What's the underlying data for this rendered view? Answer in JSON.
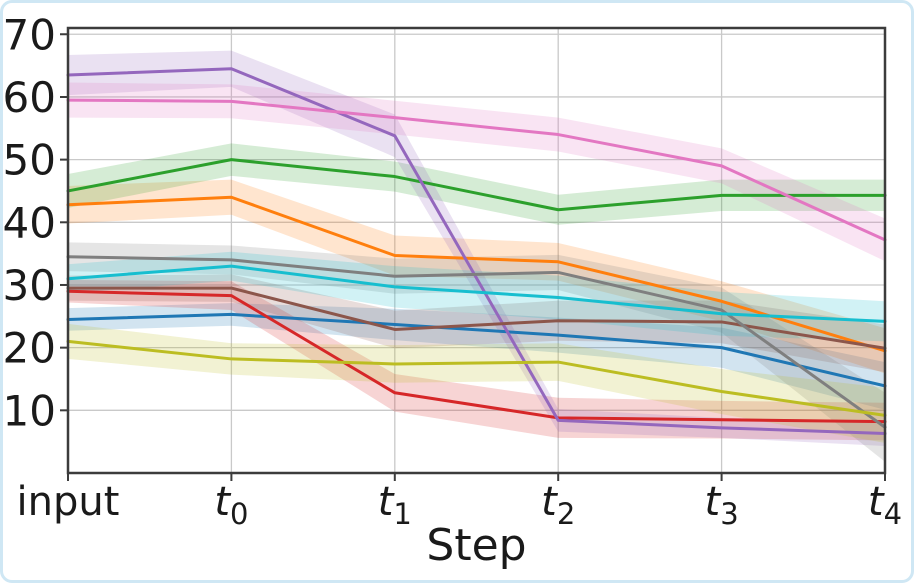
{
  "colors": {
    "card_border": "#cfe7f4",
    "grid": "#c9c9c9",
    "spine": "#3c3c3c",
    "text": "#1a1a1a",
    "background": "#ffffff"
  },
  "chart_data": {
    "type": "line",
    "title": "",
    "xlabel": "Step",
    "ylabel": "",
    "x_tick_labels": [
      "input",
      "t_0",
      "t_1",
      "t_2",
      "t_3",
      "t_4"
    ],
    "y_ticks": [
      10,
      20,
      30,
      40,
      50,
      60,
      70
    ],
    "ylim": [
      0,
      71
    ],
    "grid": true,
    "legend": "none",
    "band_alpha": 0.2,
    "series": [
      {
        "name": "blue",
        "color": "#1f77b4",
        "values": [
          24.5,
          25.3,
          23.7,
          22.0,
          20.0,
          13.9
        ],
        "band": [
          1.8,
          1.8,
          2.5,
          2.8,
          3.2,
          3.8
        ]
      },
      {
        "name": "orange",
        "color": "#ff7f0e",
        "values": [
          42.8,
          44.0,
          34.7,
          33.7,
          27.4,
          19.5
        ],
        "band": [
          3.0,
          2.8,
          3.2,
          3.0,
          3.2,
          3.6
        ]
      },
      {
        "name": "green",
        "color": "#2ca02c",
        "values": [
          45.0,
          50.0,
          47.3,
          42.0,
          44.3,
          44.3
        ],
        "band": [
          2.7,
          2.6,
          2.4,
          2.4,
          2.5,
          2.5
        ]
      },
      {
        "name": "red",
        "color": "#d62728",
        "values": [
          29.0,
          28.3,
          12.8,
          8.8,
          8.5,
          8.2
        ],
        "band": [
          1.8,
          2.3,
          3.0,
          3.2,
          3.0,
          3.0
        ]
      },
      {
        "name": "purple",
        "color": "#9467bd",
        "values": [
          63.5,
          64.5,
          53.8,
          8.4,
          7.2,
          6.3
        ],
        "band": [
          3.2,
          2.9,
          3.4,
          1.8,
          1.6,
          2.0
        ]
      },
      {
        "name": "brown",
        "color": "#8c564b",
        "values": [
          29.5,
          29.5,
          22.9,
          24.3,
          24.1,
          19.9
        ],
        "band": [
          2.0,
          2.2,
          3.0,
          3.2,
          3.4,
          3.8
        ]
      },
      {
        "name": "pink",
        "color": "#e377c2",
        "values": [
          59.5,
          59.3,
          56.7,
          54.0,
          49.0,
          37.2
        ],
        "band": [
          2.8,
          2.7,
          2.7,
          2.7,
          2.8,
          3.4
        ]
      },
      {
        "name": "gray",
        "color": "#7f7f7f",
        "values": [
          34.5,
          34.0,
          31.4,
          32.0,
          26.0,
          7.3
        ],
        "band": [
          2.3,
          2.3,
          2.8,
          2.8,
          3.6,
          5.5
        ]
      },
      {
        "name": "olive",
        "color": "#bcbd22",
        "values": [
          21.0,
          18.2,
          17.4,
          17.7,
          13.0,
          9.2
        ],
        "band": [
          2.8,
          2.5,
          3.0,
          3.0,
          3.6,
          4.4
        ]
      },
      {
        "name": "cyan",
        "color": "#17becf",
        "values": [
          31.0,
          33.0,
          29.7,
          28.0,
          25.4,
          24.2
        ],
        "band": [
          2.3,
          2.3,
          3.3,
          3.5,
          3.5,
          3.2
        ]
      }
    ]
  }
}
